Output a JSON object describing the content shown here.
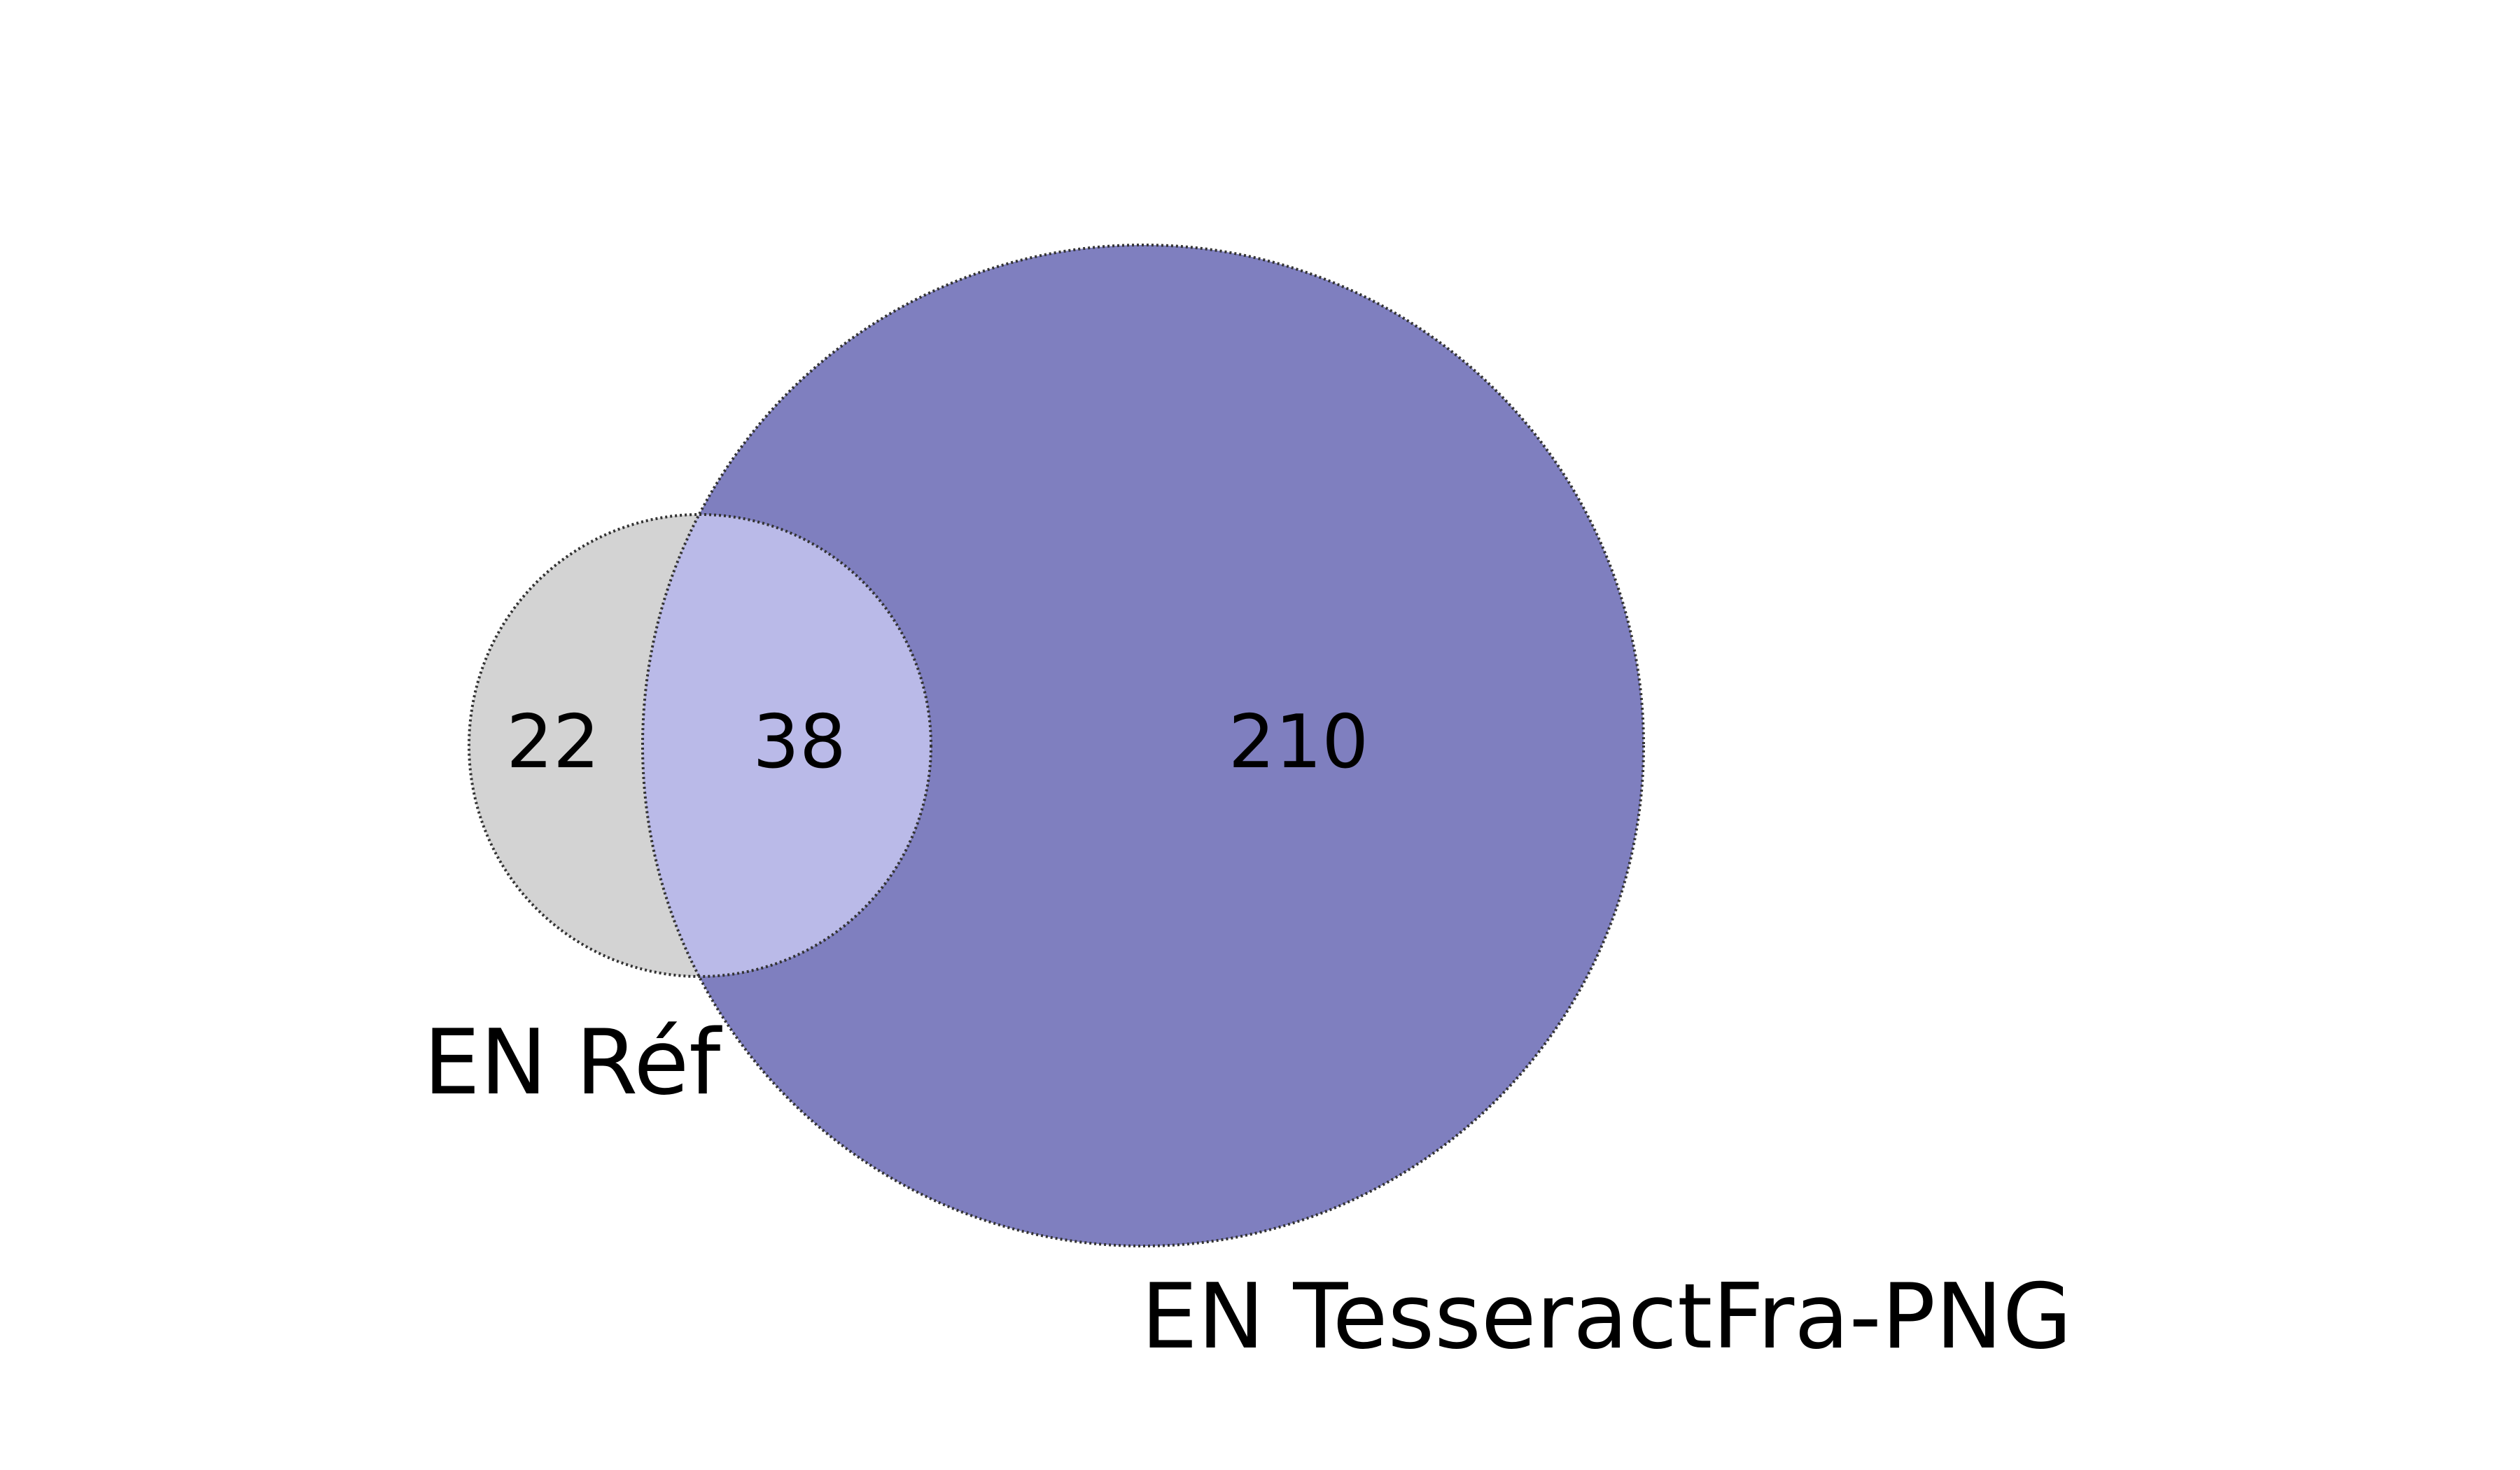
{
  "venn": {
    "sets": [
      {
        "label": "EN Réf",
        "color": "#d3d3d3"
      },
      {
        "label": "EN TesseractFra-PNG",
        "color": "#7f7fbf"
      }
    ],
    "regions": {
      "only_set_a": "22",
      "intersection": "38",
      "only_set_b": "210"
    },
    "intersection_color": "#babae8",
    "outline_style": "dotted",
    "outline_color": "#333333"
  }
}
